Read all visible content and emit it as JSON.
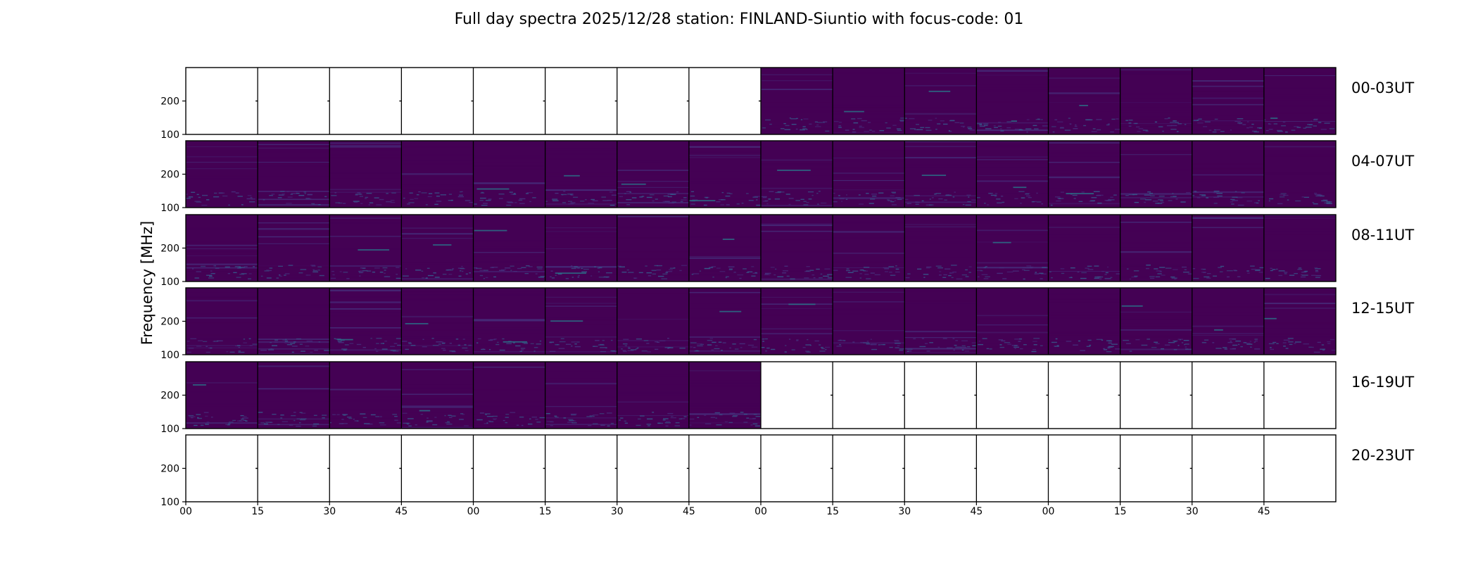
{
  "chart_data": {
    "type": "heatmap",
    "title": "Full day spectra 2025/12/28 station: FINLAND-Siuntio with focus-code: 01",
    "ylabel": "Frequency [MHz]",
    "xlabel": "",
    "ylim": [
      100,
      300
    ],
    "y_ticks": [
      "100",
      "200"
    ],
    "x_ticks": [
      "00",
      "15",
      "30",
      "45",
      "00",
      "15",
      "30",
      "45",
      "00",
      "15",
      "30",
      "45",
      "00",
      "15",
      "30",
      "45"
    ],
    "panels_per_row": 16,
    "minutes_per_panel": 15,
    "colormap": [
      "#440154",
      "#46317e",
      "#365c8d",
      "#277f8e",
      "#1fa187",
      "#4ac16d",
      "#a0da39",
      "#fde725"
    ],
    "rows": [
      {
        "label": "00-03UT",
        "data_present": [
          false,
          false,
          false,
          false,
          false,
          false,
          false,
          false,
          true,
          true,
          true,
          true,
          true,
          true,
          true,
          true
        ]
      },
      {
        "label": "04-07UT",
        "data_present": [
          true,
          true,
          true,
          true,
          true,
          true,
          true,
          true,
          true,
          true,
          true,
          true,
          true,
          true,
          true,
          true
        ]
      },
      {
        "label": "08-11UT",
        "data_present": [
          true,
          true,
          true,
          true,
          true,
          true,
          true,
          true,
          true,
          true,
          true,
          true,
          true,
          true,
          true,
          true
        ]
      },
      {
        "label": "12-15UT",
        "data_present": [
          true,
          true,
          true,
          true,
          true,
          true,
          true,
          true,
          true,
          true,
          true,
          true,
          true,
          true,
          true,
          true
        ]
      },
      {
        "label": "16-19UT",
        "data_present": [
          true,
          true,
          true,
          true,
          true,
          true,
          true,
          true,
          false,
          false,
          false,
          false,
          false,
          false,
          false,
          false
        ]
      },
      {
        "label": "20-23UT",
        "data_present": [
          false,
          false,
          false,
          false,
          false,
          false,
          false,
          false,
          false,
          false,
          false,
          false,
          false,
          false,
          false,
          false
        ]
      }
    ]
  }
}
